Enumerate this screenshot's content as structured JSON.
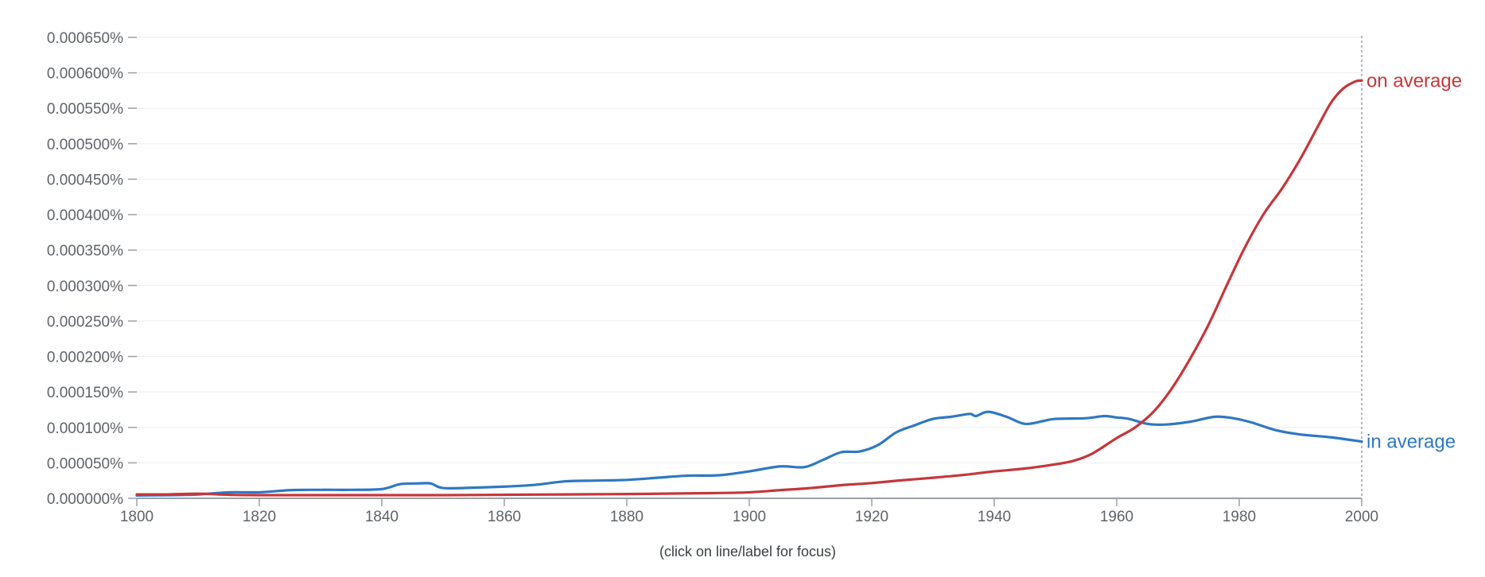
{
  "chart_data": {
    "type": "line",
    "title": "",
    "xlabel": "",
    "ylabel": "",
    "xlim": [
      1800,
      2000
    ],
    "ylim": [
      0,
      0.00065
    ],
    "x_ticks": [
      1800,
      1820,
      1840,
      1860,
      1880,
      1900,
      1920,
      1940,
      1960,
      1980,
      2000
    ],
    "y_ticks": [
      0,
      5e-05,
      0.0001,
      0.00015,
      0.0002,
      0.00025,
      0.0003,
      0.00035,
      0.0004,
      0.00045,
      0.0005,
      0.00055,
      0.0006,
      0.00065
    ],
    "x_tick_labels": [
      "1800",
      "1820",
      "1840",
      "1860",
      "1880",
      "1900",
      "1920",
      "1940",
      "1960",
      "1980",
      "2000"
    ],
    "y_tick_labels": [
      "0.000000%",
      "0.000050%",
      "0.000100%",
      "0.000150%",
      "0.000200%",
      "0.000250%",
      "0.000300%",
      "0.000350%",
      "0.000400%",
      "0.000450%",
      "0.000500%",
      "0.000550%",
      "0.000600%",
      "0.000650%"
    ],
    "grid": true,
    "legend": "end-of-line labels",
    "focus_year_marker": 2000,
    "hint": "(click on line/label for focus)",
    "series": [
      {
        "name": "on average",
        "color": "#c5373b",
        "points": [
          [
            1800,
            5.5e-06
          ],
          [
            1805,
            5.5e-06
          ],
          [
            1810,
            6.5e-06
          ],
          [
            1815,
            5e-06
          ],
          [
            1820,
            4.5e-06
          ],
          [
            1830,
            4.5e-06
          ],
          [
            1840,
            4.5e-06
          ],
          [
            1850,
            4.5e-06
          ],
          [
            1860,
            5e-06
          ],
          [
            1870,
            5.5e-06
          ],
          [
            1880,
            6e-06
          ],
          [
            1890,
            7e-06
          ],
          [
            1895,
            7.5e-06
          ],
          [
            1900,
            8.5e-06
          ],
          [
            1905,
            1.15e-05
          ],
          [
            1910,
            1.45e-05
          ],
          [
            1915,
            1.85e-05
          ],
          [
            1920,
            2.15e-05
          ],
          [
            1925,
            2.55e-05
          ],
          [
            1930,
            2.9e-05
          ],
          [
            1935,
            3.3e-05
          ],
          [
            1940,
            3.8e-05
          ],
          [
            1945,
            4.2e-05
          ],
          [
            1950,
            4.8e-05
          ],
          [
            1953,
            5.3e-05
          ],
          [
            1956,
            6.3e-05
          ],
          [
            1960,
            8.5e-05
          ],
          [
            1963,
            0.0001
          ],
          [
            1966,
            0.000122
          ],
          [
            1969,
            0.000155
          ],
          [
            1972,
            0.000197
          ],
          [
            1975,
            0.000245
          ],
          [
            1978,
            0.000301
          ],
          [
            1981,
            0.000355
          ],
          [
            1984,
            0.000401
          ],
          [
            1987,
            0.000437
          ],
          [
            1990,
            0.000479
          ],
          [
            1993,
            0.000527
          ],
          [
            1995,
            0.000558
          ],
          [
            1997,
            0.000578
          ],
          [
            1999,
            0.000588
          ],
          [
            2000,
            0.000589
          ]
        ]
      },
      {
        "name": "in average",
        "color": "#2f78c3",
        "points": [
          [
            1800,
            4e-06
          ],
          [
            1805,
            4.5e-06
          ],
          [
            1810,
            5.5e-06
          ],
          [
            1815,
            8.5e-06
          ],
          [
            1820,
            8.5e-06
          ],
          [
            1825,
            1.15e-05
          ],
          [
            1830,
            1.2e-05
          ],
          [
            1835,
            1.2e-05
          ],
          [
            1840,
            1.3e-05
          ],
          [
            1843,
            2e-05
          ],
          [
            1846,
            2.1e-05
          ],
          [
            1848,
            2.1e-05
          ],
          [
            1850,
            1.45e-05
          ],
          [
            1855,
            1.5e-05
          ],
          [
            1860,
            1.65e-05
          ],
          [
            1865,
            1.9e-05
          ],
          [
            1870,
            2.4e-05
          ],
          [
            1875,
            2.5e-05
          ],
          [
            1880,
            2.6e-05
          ],
          [
            1885,
            2.9e-05
          ],
          [
            1890,
            3.2e-05
          ],
          [
            1895,
            3.25e-05
          ],
          [
            1900,
            3.8e-05
          ],
          [
            1905,
            4.5e-05
          ],
          [
            1909,
            4.4e-05
          ],
          [
            1912,
            5.4e-05
          ],
          [
            1915,
            6.5e-05
          ],
          [
            1918,
            6.6e-05
          ],
          [
            1921,
            7.5e-05
          ],
          [
            1924,
            9.3e-05
          ],
          [
            1927,
            0.000103
          ],
          [
            1930,
            0.000112
          ],
          [
            1933,
            0.000115
          ],
          [
            1936,
            0.000119
          ],
          [
            1937,
            0.000116
          ],
          [
            1939,
            0.000122
          ],
          [
            1942,
            0.000115
          ],
          [
            1945,
            0.000105
          ],
          [
            1948,
            0.000109
          ],
          [
            1950,
            0.000112
          ],
          [
            1955,
            0.000113
          ],
          [
            1958,
            0.000116
          ],
          [
            1960,
            0.000114
          ],
          [
            1962,
            0.000112
          ],
          [
            1965,
            0.000105
          ],
          [
            1968,
            0.000104
          ],
          [
            1972,
            0.000108
          ],
          [
            1976,
            0.000115
          ],
          [
            1979,
            0.000113
          ],
          [
            1982,
            0.000107
          ],
          [
            1986,
            9.6e-05
          ],
          [
            1990,
            9e-05
          ],
          [
            1995,
            8.6e-05
          ],
          [
            2000,
            8e-05
          ]
        ]
      }
    ]
  }
}
